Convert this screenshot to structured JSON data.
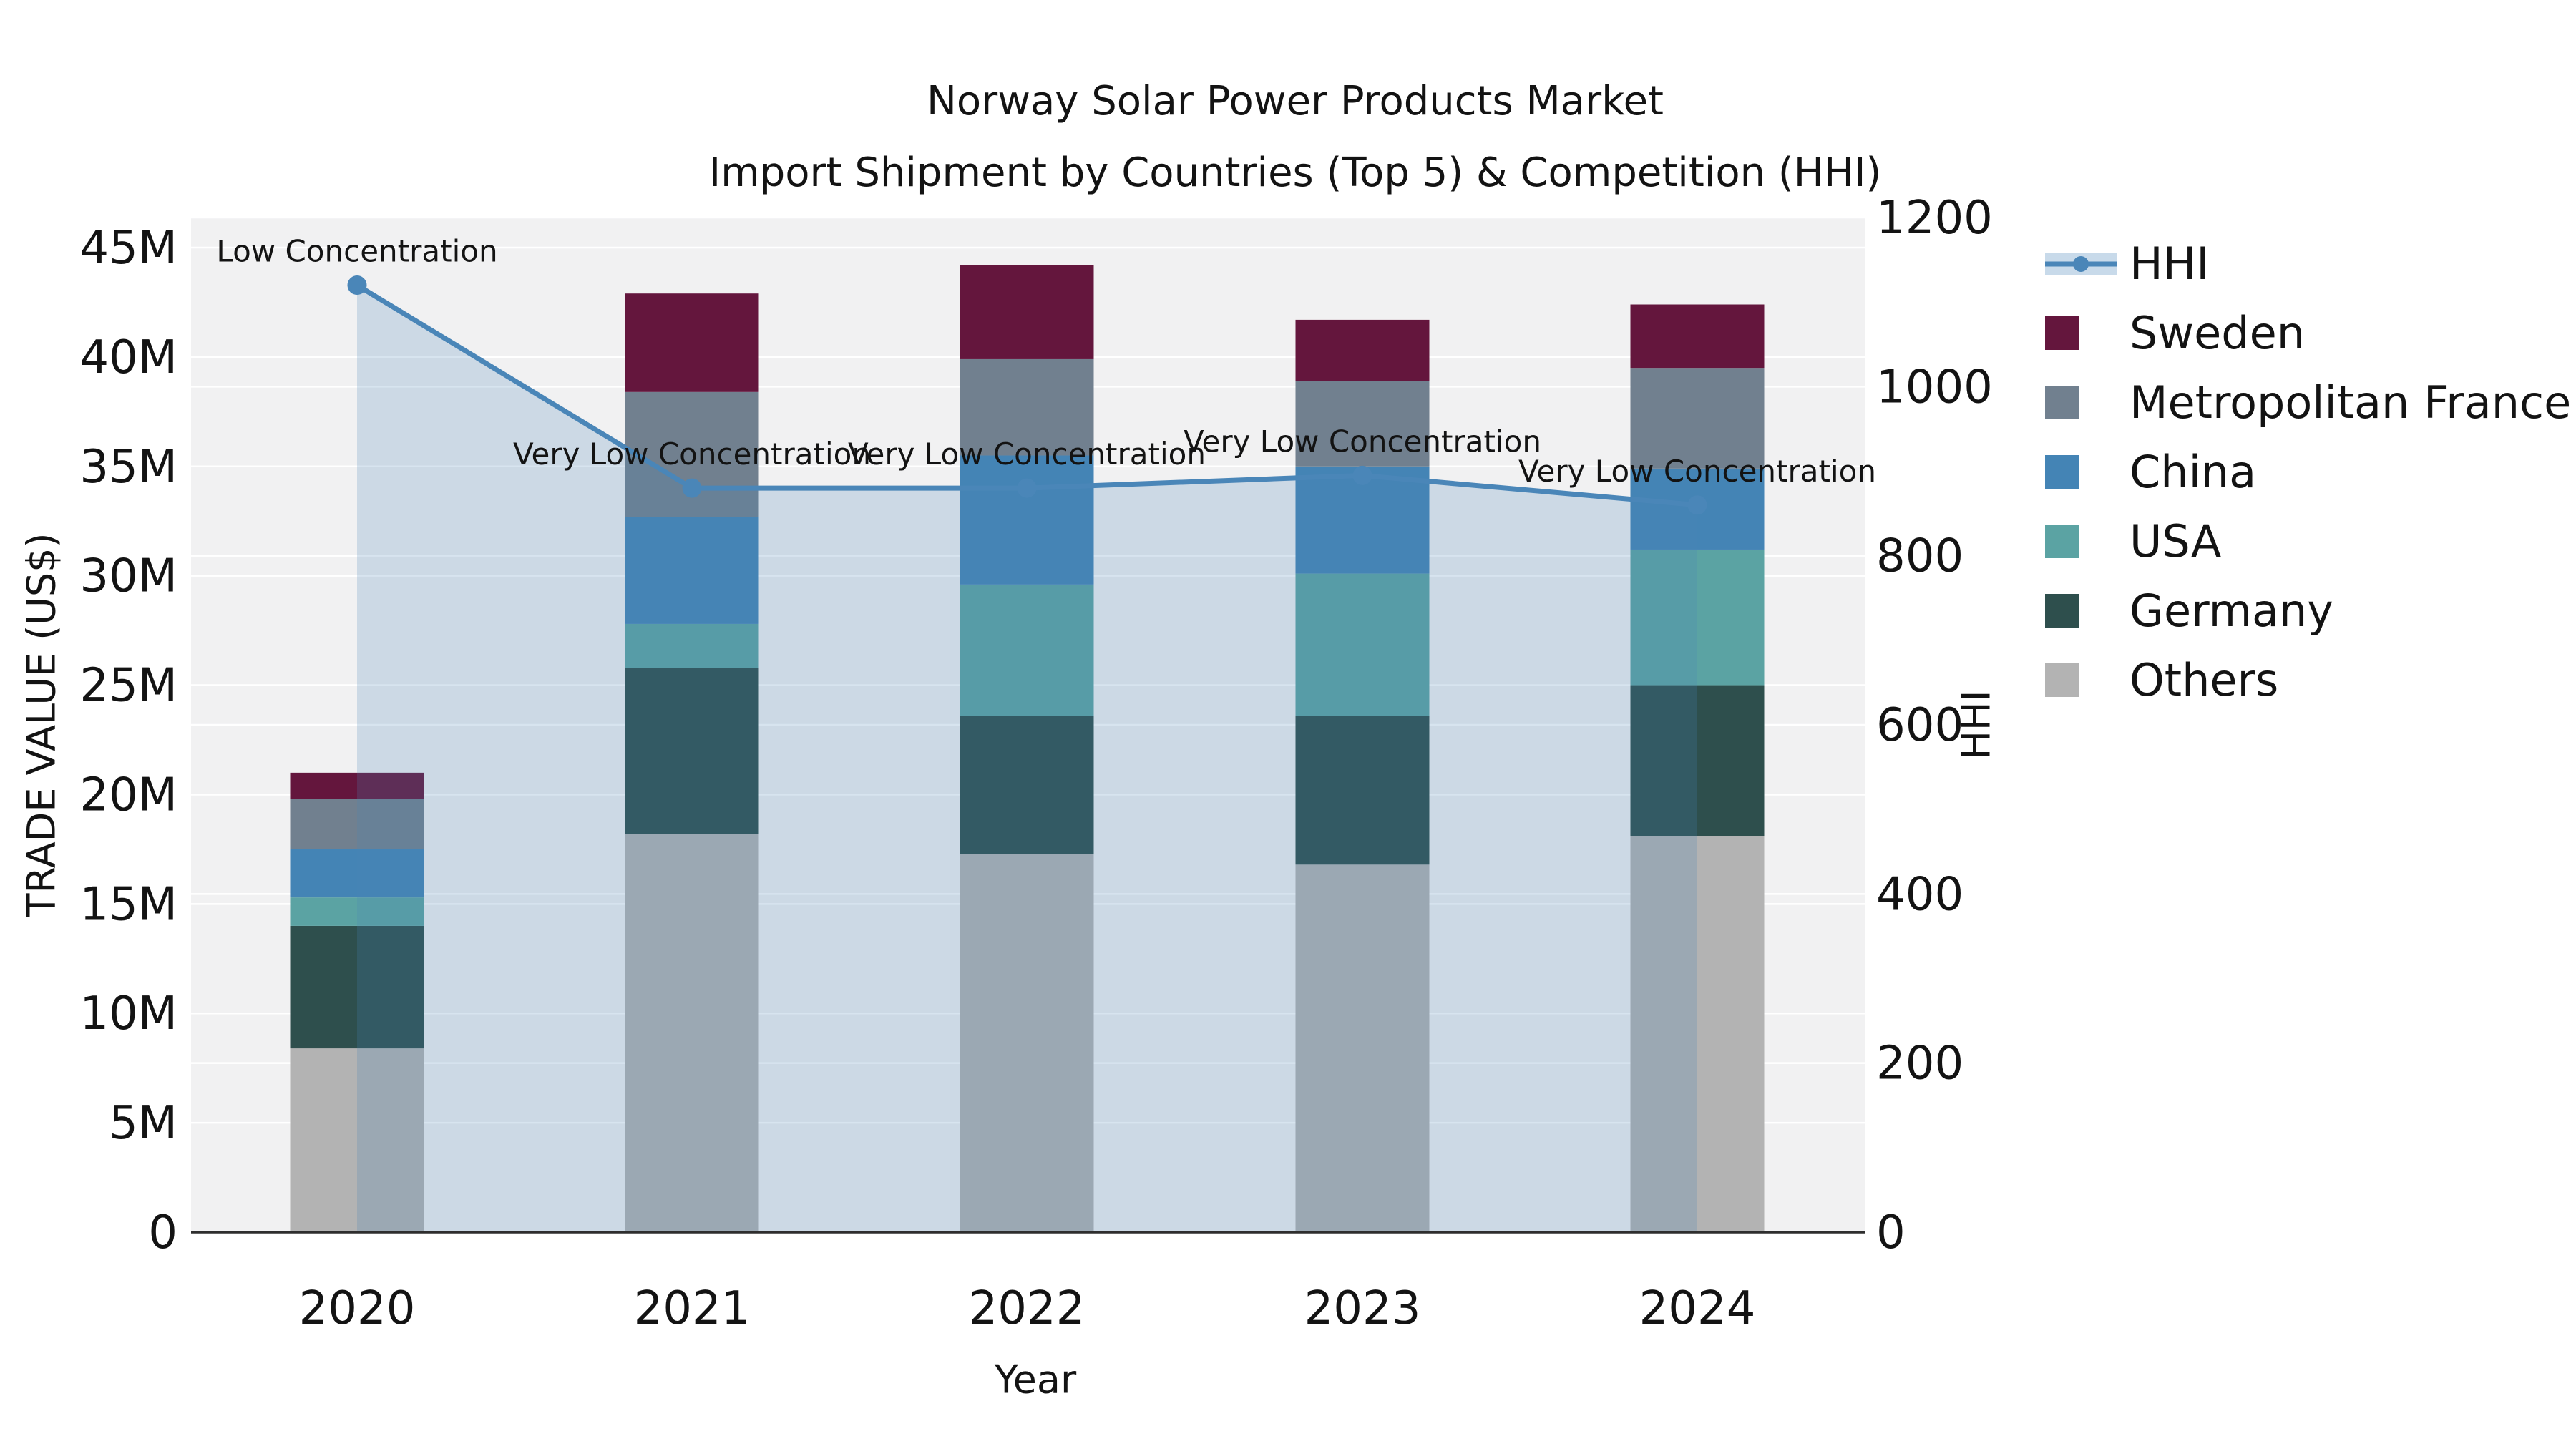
{
  "chart_data": {
    "type": "bar+line",
    "title": "Norway Solar Power Products Market",
    "subtitle": "Import Shipment by Countries (Top 5) & Competition (HHI)",
    "xlabel": "Year",
    "ylabel_left": "TRADE VALUE (US$)",
    "ylabel_right": "HHI",
    "categories": [
      "2020",
      "2021",
      "2022",
      "2023",
      "2024"
    ],
    "value_unit": "million US$",
    "stack_order_bottom_to_top": [
      "Others",
      "Germany",
      "USA",
      "China",
      "Metropolitan France",
      "Sweden"
    ],
    "series": [
      {
        "name": "Others",
        "color": "#B3B3B3",
        "values": [
          8.4,
          18.2,
          17.3,
          16.8,
          18.1
        ]
      },
      {
        "name": "Germany",
        "color": "#2E4F4D",
        "values": [
          5.6,
          7.6,
          6.3,
          6.8,
          6.9
        ]
      },
      {
        "name": "USA",
        "color": "#5BA3A3",
        "values": [
          1.3,
          2.0,
          6.0,
          6.5,
          6.2
        ]
      },
      {
        "name": "China",
        "color": "#4484B5",
        "values": [
          2.2,
          4.9,
          5.9,
          4.9,
          3.7
        ]
      },
      {
        "name": "Metropolitan France",
        "color": "#71808F",
        "values": [
          2.3,
          5.7,
          4.4,
          3.9,
          4.6
        ]
      },
      {
        "name": "Sweden",
        "color": "#64163D",
        "values": [
          1.2,
          4.5,
          4.3,
          2.8,
          2.9
        ]
      }
    ],
    "totals": [
      21.0,
      42.9,
      44.2,
      41.7,
      42.4
    ],
    "hhi_line": {
      "name": "HHI",
      "color": "#4A86B8",
      "area_opacity": 0.22,
      "values": [
        1120,
        880,
        880,
        895,
        860
      ]
    },
    "annotations": [
      "Low Concentration",
      "Very Low Concentration",
      "Very Low Concentration",
      "Very Low Concentration",
      "Very Low Concentration"
    ],
    "axis_left": {
      "min": 0,
      "max": 45,
      "step": 5,
      "tick_labels": [
        "0",
        "5M",
        "10M",
        "15M",
        "20M",
        "25M",
        "30M",
        "35M",
        "40M",
        "45M"
      ]
    },
    "axis_right": {
      "min": 0,
      "max": 1200,
      "step": 200,
      "tick_labels": [
        "0",
        "200",
        "400",
        "600",
        "800",
        "1000",
        "1200"
      ]
    },
    "legend_order": [
      "HHI",
      "Sweden",
      "Metropolitan France",
      "China",
      "USA",
      "Germany",
      "Others"
    ],
    "plot_background": "#F1F1F2",
    "grid_color": "#FFFFFF",
    "text_color": "#131313"
  }
}
